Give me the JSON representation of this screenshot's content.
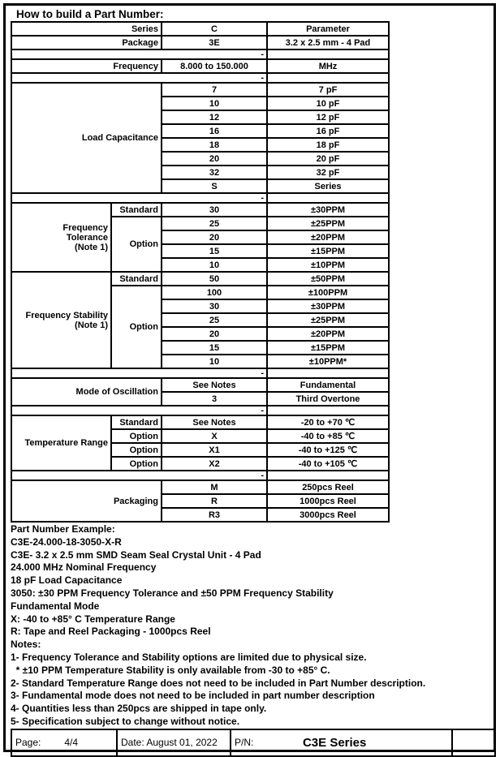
{
  "page": {
    "title": "How to build a Part Number:"
  },
  "table": {
    "sections": [
      {
        "type": "rows",
        "rows": [
          {
            "label": "Series",
            "code": "C",
            "param": "Parameter"
          },
          {
            "label": "Package",
            "code": "3E",
            "param": "3.2 x 2.5 mm - 4 Pad"
          }
        ]
      },
      {
        "type": "sep",
        "dash": "-"
      },
      {
        "type": "rows",
        "rows": [
          {
            "label": "Frequency",
            "code": "8.000 to 150.000",
            "param": "MHz"
          }
        ]
      },
      {
        "type": "sep",
        "dash": "-"
      },
      {
        "type": "group",
        "label": "Load Capacitance",
        "items": [
          [
            "7",
            "7 pF"
          ],
          [
            "10",
            "10 pF"
          ],
          [
            "12",
            "12 pF"
          ],
          [
            "16",
            "16 pF"
          ],
          [
            "18",
            "18 pF"
          ],
          [
            "20",
            "20 pF"
          ],
          [
            "32",
            "32 pF"
          ],
          [
            "S",
            "Series"
          ]
        ]
      },
      {
        "type": "sep",
        "dash": "-"
      },
      {
        "type": "split",
        "label": "Frequency\nTolerance\n(Note 1)",
        "subs": [
          {
            "sub": "Standard",
            "items": [
              [
                "30",
                "±30PPM"
              ]
            ]
          },
          {
            "sub": "Option",
            "items": [
              [
                "25",
                "±25PPM"
              ],
              [
                "20",
                "±20PPM"
              ],
              [
                "15",
                "±15PPM"
              ],
              [
                "10",
                "±10PPM"
              ]
            ]
          }
        ]
      },
      {
        "type": "split",
        "label": "Frequency Stability\n(Note 1)",
        "subs": [
          {
            "sub": "Standard",
            "items": [
              [
                "50",
                "±50PPM"
              ]
            ]
          },
          {
            "sub": "Option",
            "items": [
              [
                "100",
                "±100PPM"
              ],
              [
                "30",
                "±30PPM"
              ],
              [
                "25",
                "±25PPM"
              ],
              [
                "20",
                "±20PPM"
              ],
              [
                "15",
                "±15PPM"
              ],
              [
                "10",
                "±10PPM*"
              ]
            ]
          }
        ]
      },
      {
        "type": "sep",
        "dash": "-"
      },
      {
        "type": "group",
        "label": "Mode of Oscillation",
        "items": [
          [
            "See Notes",
            "Fundamental"
          ],
          [
            "3",
            "Third Overtone"
          ]
        ]
      },
      {
        "type": "sep",
        "dash": "-"
      },
      {
        "type": "split",
        "label": "Temperature Range",
        "subs": [
          {
            "sub": "Standard",
            "items": [
              [
                "See Notes",
                "-20 to +70 ℃"
              ]
            ]
          },
          {
            "sub": "Option",
            "items": [
              [
                "X",
                "-40 to +85 ℃"
              ]
            ]
          },
          {
            "sub": "Option",
            "items": [
              [
                "X1",
                "-40 to +125 ℃"
              ]
            ]
          },
          {
            "sub": "Option",
            "items": [
              [
                "X2",
                "-40 to +105 ℃"
              ]
            ]
          }
        ]
      },
      {
        "type": "sep",
        "dash": "-"
      },
      {
        "type": "group",
        "label": "Packaging",
        "items": [
          [
            "M",
            "250pcs Reel"
          ],
          [
            "R",
            "1000pcs Reel"
          ],
          [
            "R3",
            "3000pcs Reel"
          ]
        ]
      }
    ]
  },
  "example": {
    "lines": [
      "Part Number Example:",
      "C3E-24.000-18-3050-X-R",
      "C3E- 3.2 x 2.5 mm SMD Seam Seal Crystal Unit - 4 Pad",
      "24.000 MHz Nominal Frequency",
      "18 pF Load Capacitance",
      "3050: ±30 PPM Frequency Tolerance and ±50 PPM Frequency Stability",
      "Fundamental Mode",
      "X: -40 to +85° C Temperature Range",
      "R: Tape and Reel Packaging - 1000pcs Reel",
      "Notes:",
      "1- Frequency Tolerance and Stability options are limited due to physical size.",
      "  * ±10 PPM Temperature Stability is only available from -30 to +85° C.",
      "2- Standard Temperature Range does not need to be included in Part Number description.",
      "3- Fundamental mode does not need to be included in part number description",
      "4- Quantities less than 250pcs are shipped in tape only.",
      "5- Specification subject to change without notice."
    ]
  },
  "footer": {
    "page_label": "Page:",
    "page_value": "4/4",
    "date": "Date: August 01, 2022",
    "pn_label": "P/N:",
    "pn_value": "C3E Series"
  }
}
